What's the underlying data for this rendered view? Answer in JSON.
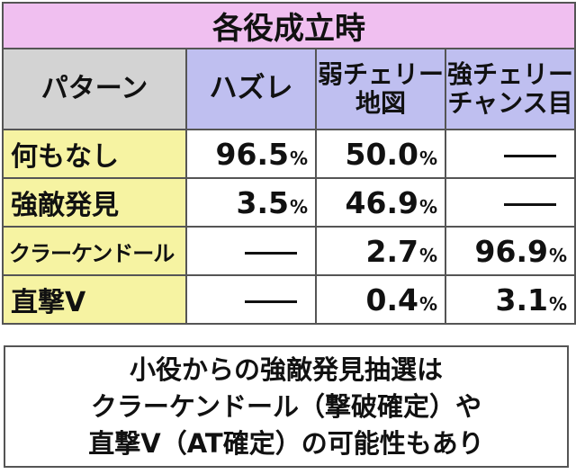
{
  "table": {
    "title": "各役成立時",
    "header": {
      "corner": "パターン",
      "col1": "ハズレ",
      "col2_line1": "弱チェリー",
      "col2_line2": "地図",
      "col3_line1": "強チェリー",
      "col3_line2": "チャンス目"
    },
    "rows": [
      {
        "label": "何もなし",
        "c1": "96.5",
        "c2": "50.0",
        "c3": "—"
      },
      {
        "label": "強敵発見",
        "c1": "3.5",
        "c2": "46.9",
        "c3": "—"
      },
      {
        "label": "クラーケンドール",
        "c1": "—",
        "c2": "2.7",
        "c3": "96.9"
      },
      {
        "label": "直撃V",
        "c1": "—",
        "c2": "0.4",
        "c3": "3.1"
      }
    ],
    "unit": "%"
  },
  "note": {
    "line1": "小役からの強敵発見抽選は",
    "line2": "クラーケンドール（撃破確定）や",
    "line3": "直撃V（AT確定）の可能性もあり"
  }
}
